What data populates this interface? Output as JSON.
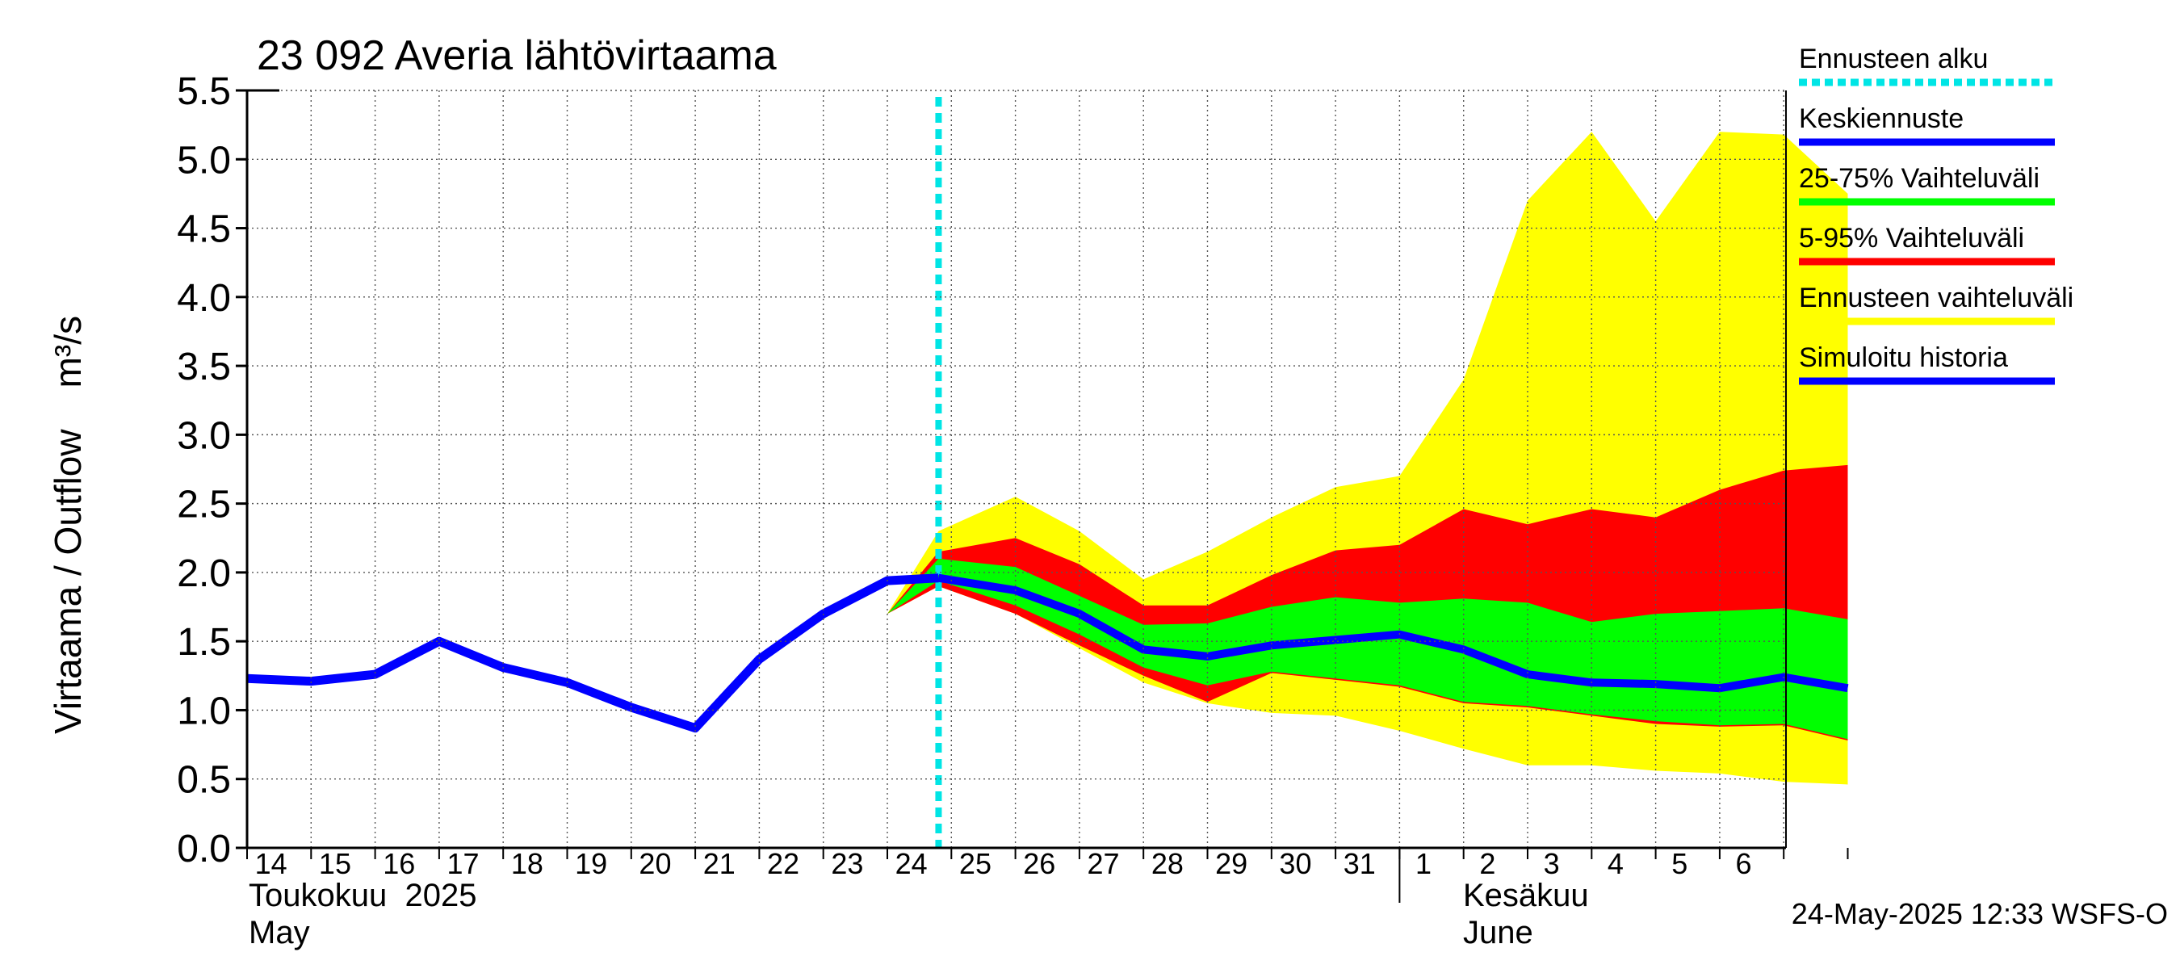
{
  "chart_data": {
    "type": "area",
    "title": "23 092 Averia lähtövirtaama",
    "ylabel": "Virtaama / Outflow    m³/s",
    "ylim": [
      0.0,
      5.5
    ],
    "yticks": [
      "0.0",
      "0.5",
      "1.0",
      "1.5",
      "2.0",
      "2.5",
      "3.0",
      "3.5",
      "4.0",
      "4.5",
      "5.0",
      "5.5"
    ],
    "x_days": [
      "14",
      "15",
      "16",
      "17",
      "18",
      "19",
      "20",
      "21",
      "22",
      "23",
      "24",
      "25",
      "26",
      "27",
      "28",
      "29",
      "30",
      "31",
      "1",
      "2",
      "3",
      "4",
      "5",
      "6"
    ],
    "month_labels": {
      "may_fi": "Toukokuu  2025",
      "may_en": "May",
      "june_fi": "Kesäkuu",
      "june_en": "June"
    },
    "footer": "24-May-2025 12:33 WSFS-O",
    "forecast_start_x": 23.8,
    "history": {
      "name": "Simuloitu historia",
      "x": [
        13.0,
        14,
        15,
        16,
        17,
        18,
        19,
        20,
        21,
        22,
        23,
        23.8
      ],
      "y": [
        1.23,
        1.21,
        1.26,
        1.5,
        1.31,
        1.2,
        1.02,
        0.87,
        1.37,
        1.7,
        1.94,
        1.96
      ]
    },
    "median": {
      "name": "Keskiennuste",
      "x": [
        23.8,
        25,
        26,
        27,
        28,
        29,
        30,
        31,
        32,
        33,
        34,
        35,
        36,
        37,
        38
      ],
      "y": [
        1.96,
        1.87,
        1.7,
        1.44,
        1.39,
        1.47,
        1.51,
        1.55,
        1.44,
        1.26,
        1.2,
        1.19,
        1.16,
        1.24,
        1.16
      ]
    },
    "band_x": [
      23,
      23.8,
      25,
      26,
      27,
      28,
      29,
      30,
      31,
      32,
      33,
      34,
      35,
      36,
      37,
      38
    ],
    "band_full": {
      "name": "Ennusteen vaihteluväli",
      "lower": [
        1.7,
        1.9,
        1.7,
        1.45,
        1.2,
        1.05,
        0.98,
        0.96,
        0.85,
        0.72,
        0.6,
        0.6,
        0.56,
        0.54,
        0.48,
        0.46
      ],
      "upper": [
        1.7,
        2.3,
        2.55,
        2.3,
        1.95,
        2.15,
        2.4,
        2.62,
        2.7,
        3.4,
        4.7,
        5.2,
        4.55,
        5.2,
        5.18,
        4.75
      ]
    },
    "band_5_95": {
      "name": "5-95% Vaihteluväli",
      "lower": [
        1.7,
        1.9,
        1.7,
        1.47,
        1.25,
        1.06,
        1.27,
        1.22,
        1.17,
        1.05,
        1.02,
        0.96,
        0.9,
        0.88,
        0.89,
        0.78
      ],
      "upper": [
        1.7,
        2.15,
        2.25,
        2.06,
        1.76,
        1.76,
        1.98,
        2.16,
        2.2,
        2.46,
        2.35,
        2.46,
        2.4,
        2.6,
        2.74,
        2.78
      ]
    },
    "band_25_75": {
      "name": "25-75% Vaihteluväli",
      "lower": [
        1.7,
        1.94,
        1.76,
        1.55,
        1.31,
        1.18,
        1.28,
        1.23,
        1.18,
        1.06,
        1.03,
        0.97,
        0.92,
        0.89,
        0.9,
        0.79
      ],
      "upper": [
        1.7,
        2.1,
        2.04,
        1.83,
        1.62,
        1.63,
        1.75,
        1.82,
        1.78,
        1.81,
        1.78,
        1.64,
        1.7,
        1.72,
        1.74,
        1.66
      ]
    },
    "colors": {
      "band_full": "#ffff00",
      "band_5_95": "#ff0000",
      "band_25_75": "#00ff00",
      "median": "#0000ff",
      "history": "#0000ff",
      "forecast_start": "#00e5e5"
    },
    "legend": [
      {
        "label": "Ennusteen alku",
        "color": "#00e5e5",
        "style": "dotted"
      },
      {
        "label": "Keskiennuste",
        "color": "#0000ff",
        "style": "solid"
      },
      {
        "label": "25-75% Vaihteluväli",
        "color": "#00ff00",
        "style": "solid"
      },
      {
        "label": "5-95% Vaihteluväli",
        "color": "#ff0000",
        "style": "solid"
      },
      {
        "label": "Ennusteen vaihteluväli",
        "color": "#ffff00",
        "style": "solid"
      },
      {
        "label": "Simuloitu historia",
        "color": "#0000ff",
        "style": "solid"
      }
    ],
    "grid": true,
    "legend_placement": "right"
  }
}
